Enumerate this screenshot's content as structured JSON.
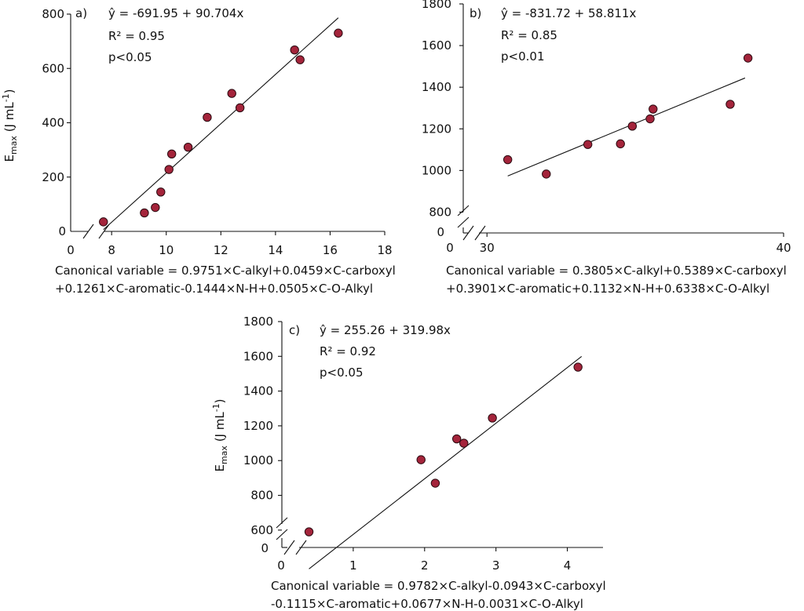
{
  "chart_data": [
    {
      "type": "scatter",
      "panel": "a)",
      "equation": "ŷ = -691.95 + 90.704x",
      "r2": "R² = 0.95",
      "pvalue": "p<0.05",
      "xlabel_lines": [
        "Canonical variable = 0.9751×C-alkyl+0.0459×C-carboxyl",
        "+0.1261×C-aromatic-0.1444×N-H+0.0505×C-O-Alkyl"
      ],
      "ylabel": "Emax (J mL-1)",
      "xlim": [
        6.5,
        18
      ],
      "ylim": [
        0,
        800
      ],
      "xticks": [
        8,
        10,
        12,
        14,
        16,
        18
      ],
      "yticks": [
        200,
        400,
        600,
        800
      ],
      "xzero": "0",
      "yzero": "0",
      "x": [
        7.7,
        9.2,
        9.6,
        9.8,
        10.1,
        10.2,
        10.8,
        11.5,
        12.4,
        12.7,
        14.7,
        14.9,
        16.3
      ],
      "y": [
        35,
        68,
        88,
        145,
        228,
        285,
        310,
        420,
        508,
        455,
        668,
        632,
        730
      ],
      "fit": {
        "intercept": -691.95,
        "slope": 90.704,
        "x_range": [
          7.7,
          16.3
        ]
      }
    },
    {
      "type": "scatter",
      "panel": "b)",
      "equation": "ŷ = -831.72 + 58.811x",
      "r2": "R² = 0.85",
      "pvalue": "p<0.01",
      "xlabel_lines": [
        "Canonical variable = 0.3805×C-alkyl+0.5389×C-carboxyl",
        "+0.3901×C-aromatic+0.1132×N-H+0.6338×C-O-Alkyl"
      ],
      "ylabel": "",
      "xlim": [
        29.2,
        40
      ],
      "ylim": [
        700,
        1800
      ],
      "xticks": [
        30,
        40
      ],
      "yticks": [
        800,
        1000,
        1200,
        1400,
        1600,
        1800
      ],
      "xzero": "0",
      "yzero": "0",
      "x": [
        30.7,
        32.0,
        33.4,
        34.5,
        34.9,
        35.5,
        35.6,
        38.2,
        38.8
      ],
      "y": [
        1052,
        983,
        1125,
        1128,
        1213,
        1248,
        1295,
        1318,
        1540
      ],
      "fit": {
        "intercept": -831.72,
        "slope": 58.811,
        "x_range": [
          30.7,
          38.7
        ]
      }
    },
    {
      "type": "scatter",
      "panel": "c)",
      "equation": "ŷ = 255.26 + 319.98x",
      "r2": "R² = 0.92",
      "pvalue": "p<0.05",
      "xlabel_lines": [
        "Canonical variable = 0.9782×C-alkyl-0.0943×C-carboxyl",
        "-0.1115×C-aromatic+0.0677×N-H-0.0031×C-O-Alkyl"
      ],
      "ylabel": "Emax (J mL-1)",
      "xlim": [
        0,
        4.5
      ],
      "ylim": [
        500,
        1800
      ],
      "xticks": [
        1,
        2,
        3,
        4
      ],
      "yticks": [
        600,
        800,
        1000,
        1200,
        1400,
        1600,
        1800
      ],
      "xzero": "0",
      "yzero": "0",
      "x": [
        0.38,
        1.95,
        2.15,
        2.45,
        2.55,
        2.95,
        4.15
      ],
      "y": [
        590,
        1005,
        870,
        1125,
        1100,
        1245,
        1538
      ],
      "fit": {
        "intercept": 255.26,
        "slope": 319.98,
        "x_range": [
          0.38,
          4.2
        ]
      }
    }
  ]
}
